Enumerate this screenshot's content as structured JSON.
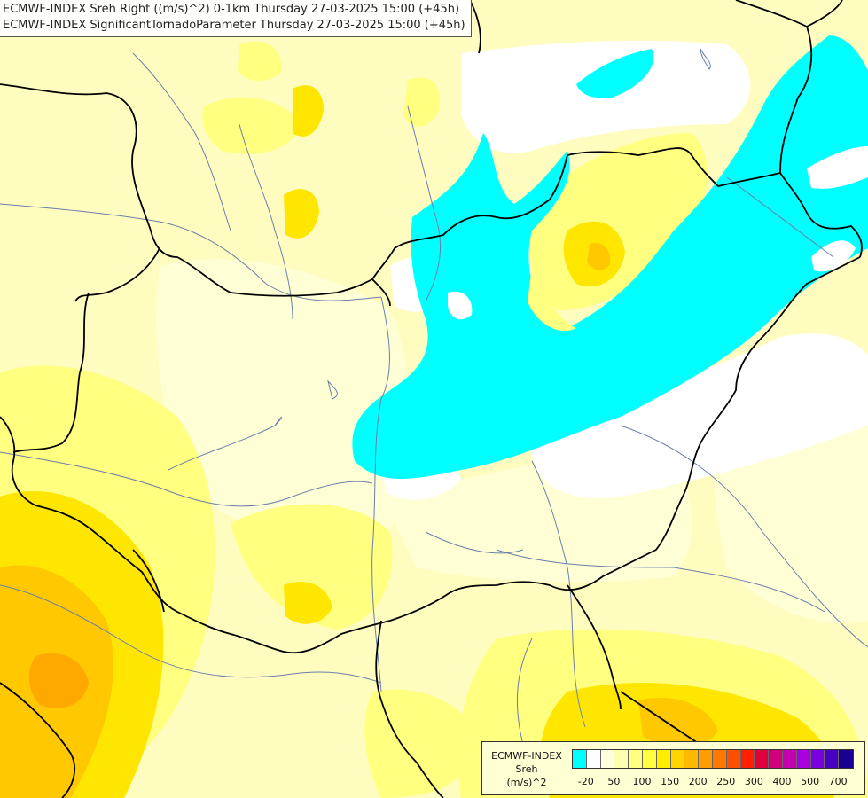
{
  "title": {
    "line1": "ECMWF-INDEX Sreh Right ((m/s)^2) 0-1km Thursday 27-03-2025 15:00 (+45h)",
    "line2": "ECMWF-INDEX SignificantTornadoParameter Thursday 27-03-2025 15:00 (+45h)"
  },
  "legend": {
    "line1": "ECMWF-INDEX",
    "line2": "Sreh",
    "line3": "(m/s)^2",
    "colors": [
      "#00ffff",
      "#ffffff",
      "#ffffe0",
      "#ffffb0",
      "#ffff80",
      "#ffff40",
      "#ffee00",
      "#ffd400",
      "#ffb800",
      "#ff9c00",
      "#ff7800",
      "#ff5000",
      "#ff2000",
      "#e0003c",
      "#d0007a",
      "#c400b0",
      "#a800e0",
      "#7a00e0",
      "#4a00c0",
      "#1a0090"
    ],
    "ticks": [
      {
        "label": "-20",
        "at": 1
      },
      {
        "label": "50",
        "at": 3
      },
      {
        "label": "100",
        "at": 5
      },
      {
        "label": "150",
        "at": 7
      },
      {
        "label": "200",
        "at": 9
      },
      {
        "label": "250",
        "at": 11
      },
      {
        "label": "300",
        "at": 13
      },
      {
        "label": "400",
        "at": 15
      },
      {
        "label": "500",
        "at": 17
      },
      {
        "label": "700",
        "at": 19
      }
    ]
  },
  "map_layers": {
    "field_colors": {
      "base": "#fffcc0",
      "light": "#ffffd6",
      "yellow": "#ffff80",
      "gold": "#ffe600",
      "orange": "#ffc800",
      "deep": "#ffa800",
      "white": "#ffffff",
      "cyan": "#00ffff"
    },
    "border_color": "#000000",
    "river_color": "#6a7fa8"
  }
}
